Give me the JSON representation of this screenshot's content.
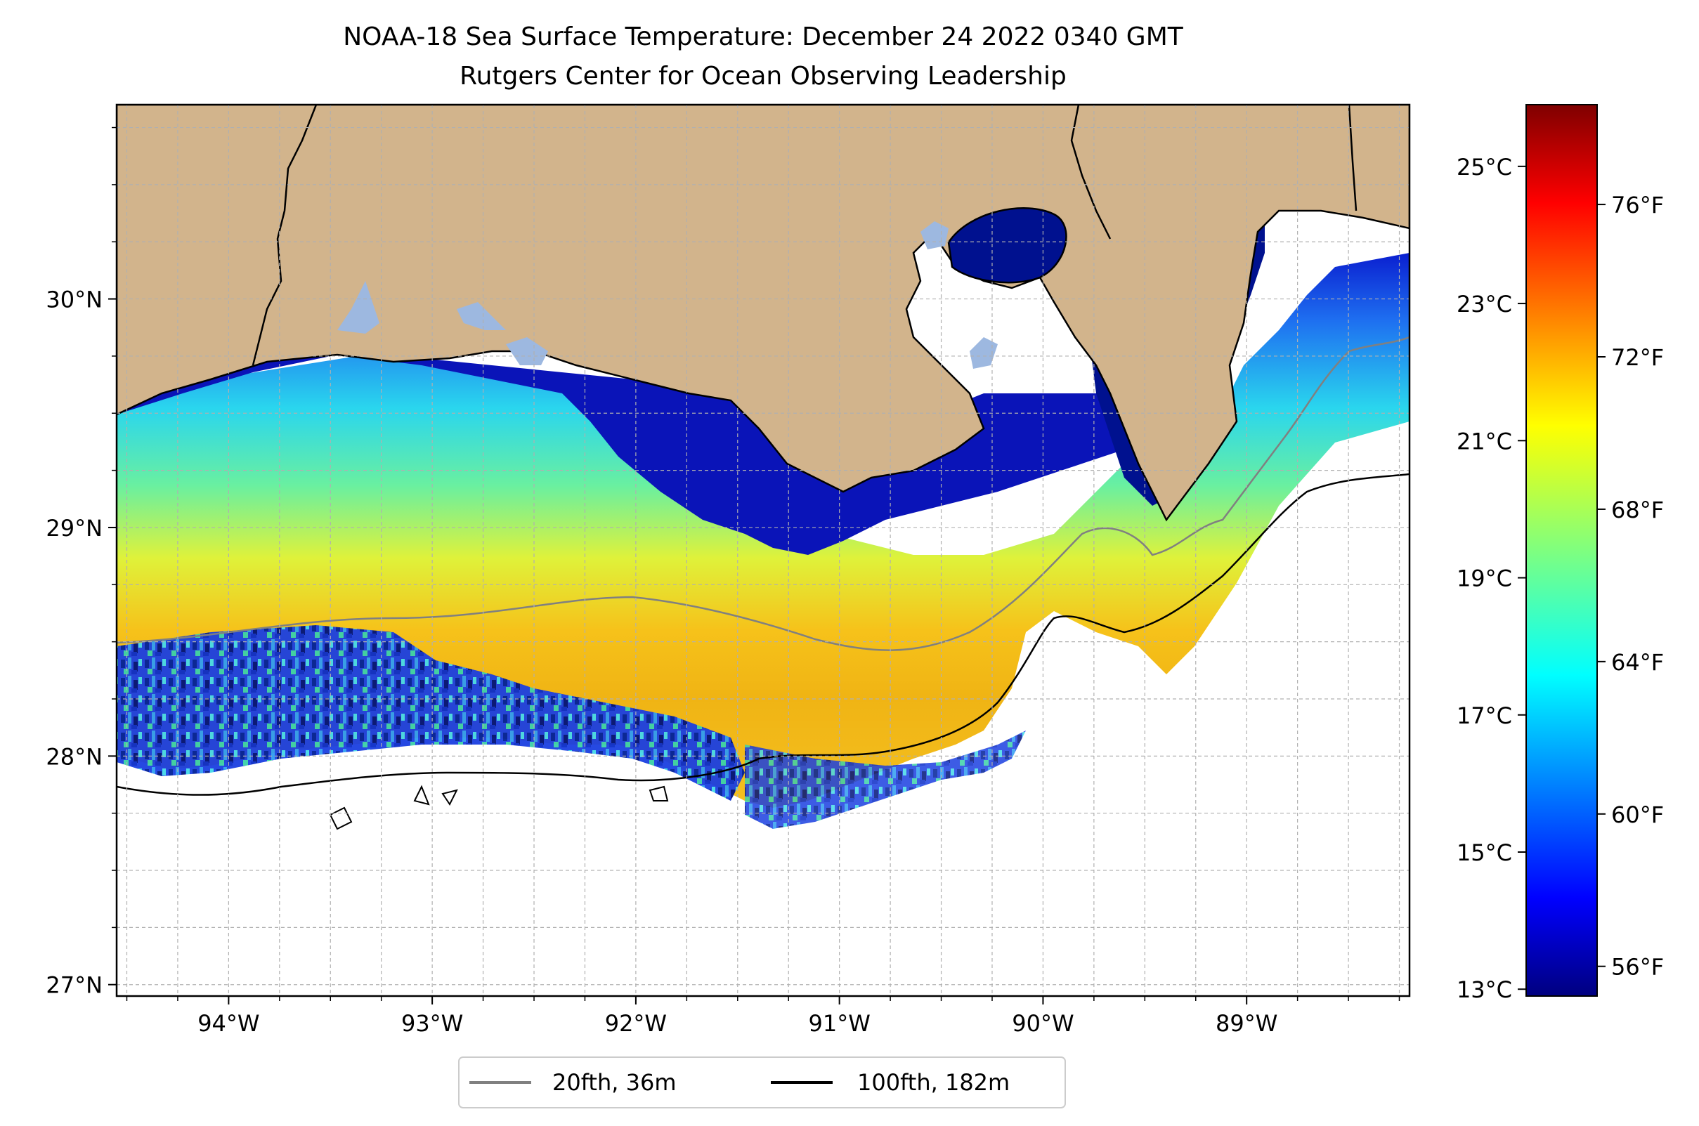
{
  "title_line1": "NOAA-18 Sea Surface Temperature: December 24 2022 0340 GMT",
  "title_line2": "Rutgers Center for Ocean Observing Leadership",
  "map": {
    "lon_range": [
      -94.55,
      -88.2
    ],
    "lat_range": [
      26.95,
      30.85
    ],
    "lon_ticks": [
      {
        "value": -94,
        "label": "94°W"
      },
      {
        "value": -93,
        "label": "93°W"
      },
      {
        "value": -92,
        "label": "92°W"
      },
      {
        "value": -91,
        "label": "91°W"
      },
      {
        "value": -90,
        "label": "90°W"
      },
      {
        "value": -89,
        "label": "89°W"
      }
    ],
    "lat_ticks": [
      {
        "value": 27,
        "label": "27°N"
      },
      {
        "value": 28,
        "label": "28°N"
      },
      {
        "value": 29,
        "label": "29°N"
      },
      {
        "value": 30,
        "label": "30°N"
      }
    ],
    "grid": true,
    "land_color": "#d2b48c",
    "lake_color": "#9db8e0"
  },
  "legend": {
    "items": [
      {
        "label": "20fth, 36m",
        "color": "#808080"
      },
      {
        "label": "100fth, 182m",
        "color": "#000000"
      }
    ],
    "placement": "bottom-center"
  },
  "colorbar": {
    "colormap": "jet",
    "range_c": [
      12.9,
      25.9
    ],
    "celsius_ticks": [
      {
        "value": 13,
        "label": "13°C"
      },
      {
        "value": 15,
        "label": "15°C"
      },
      {
        "value": 17,
        "label": "17°C"
      },
      {
        "value": 19,
        "label": "19°C"
      },
      {
        "value": 21,
        "label": "21°C"
      },
      {
        "value": 23,
        "label": "23°C"
      },
      {
        "value": 25,
        "label": "25°C"
      }
    ],
    "fahrenheit_ticks": [
      {
        "value": 56,
        "label": "56°F"
      },
      {
        "value": 60,
        "label": "60°F"
      },
      {
        "value": 64,
        "label": "64°F"
      },
      {
        "value": 68,
        "label": "68°F"
      },
      {
        "value": 72,
        "label": "72°F"
      },
      {
        "value": 76,
        "label": "76°F"
      }
    ]
  }
}
